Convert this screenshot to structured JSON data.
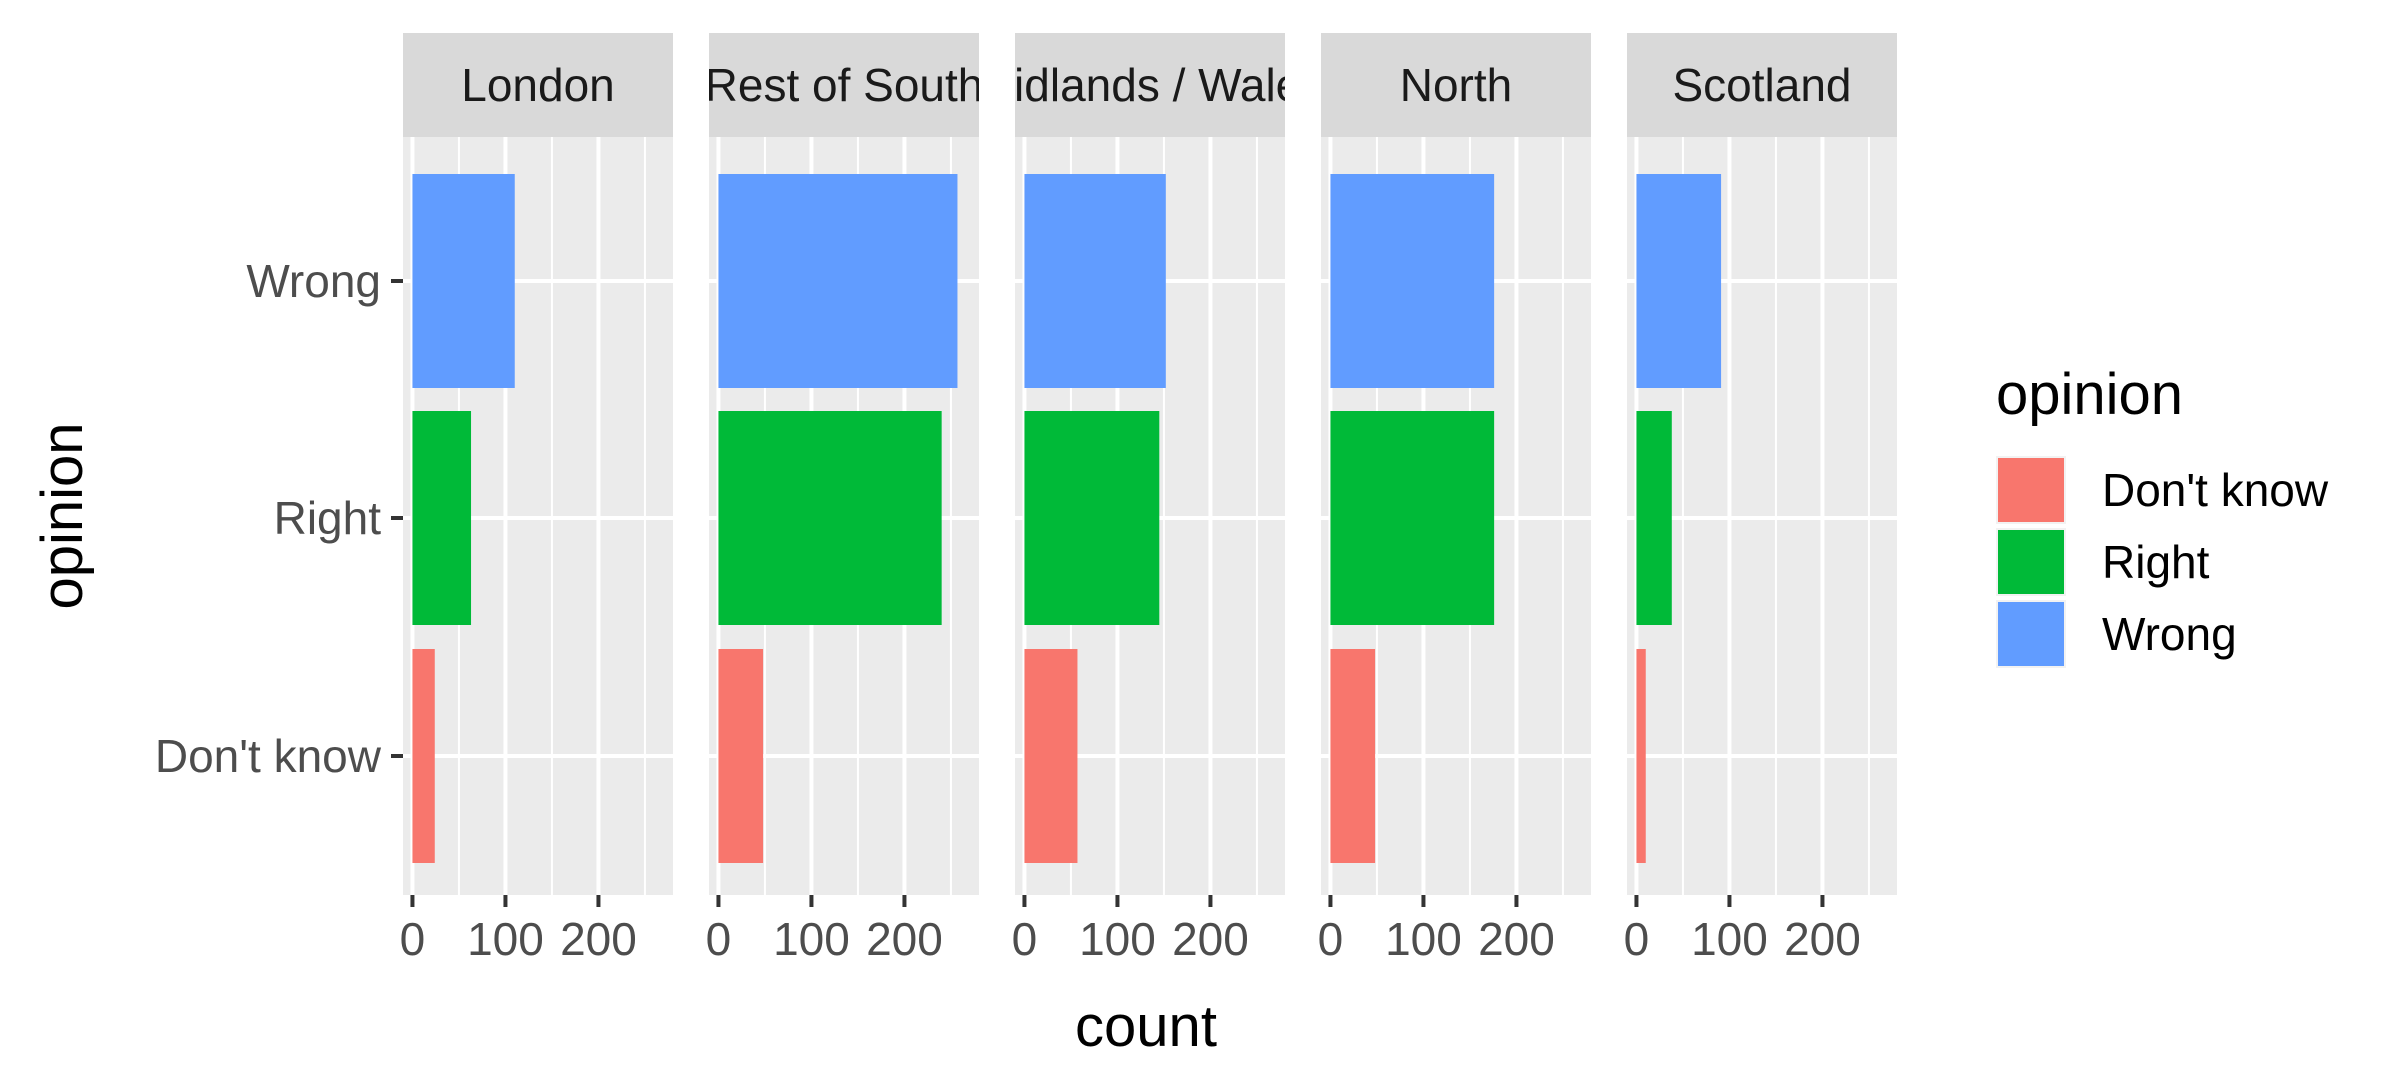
{
  "chart_data": {
    "type": "bar",
    "orientation": "horizontal",
    "facet_by": "region",
    "facets": [
      {
        "label": "London",
        "values": {
          "Don't know": 24,
          "Right": 63,
          "Wrong": 110
        }
      },
      {
        "label": "Rest of South",
        "values": {
          "Don't know": 48,
          "Right": 240,
          "Wrong": 257
        }
      },
      {
        "label": "Midlands / Wales",
        "values": {
          "Don't know": 57,
          "Right": 145,
          "Wrong": 152
        }
      },
      {
        "label": "North",
        "values": {
          "Don't know": 48,
          "Right": 176,
          "Wrong": 176
        }
      },
      {
        "label": "Scotland",
        "values": {
          "Don't know": 10,
          "Right": 38,
          "Wrong": 91
        }
      }
    ],
    "categories": [
      "Don't know",
      "Right",
      "Wrong"
    ],
    "xlabel": "count",
    "ylabel": "opinion",
    "xlim": [
      0,
      270
    ],
    "xticks": [
      0,
      100,
      200
    ],
    "grid": true,
    "legend": {
      "title": "opinion",
      "placement": "right",
      "entries": [
        {
          "label": "Don't know",
          "color": "#F8766D"
        },
        {
          "label": "Right",
          "color": "#00BA38"
        },
        {
          "label": "Wrong",
          "color": "#619CFF"
        }
      ]
    },
    "colors": {
      "Don't know": "#F8766D",
      "Right": "#00BA38",
      "Wrong": "#619CFF",
      "panel_background": "#EBEBEB",
      "strip_background": "#D9D9D9"
    }
  }
}
